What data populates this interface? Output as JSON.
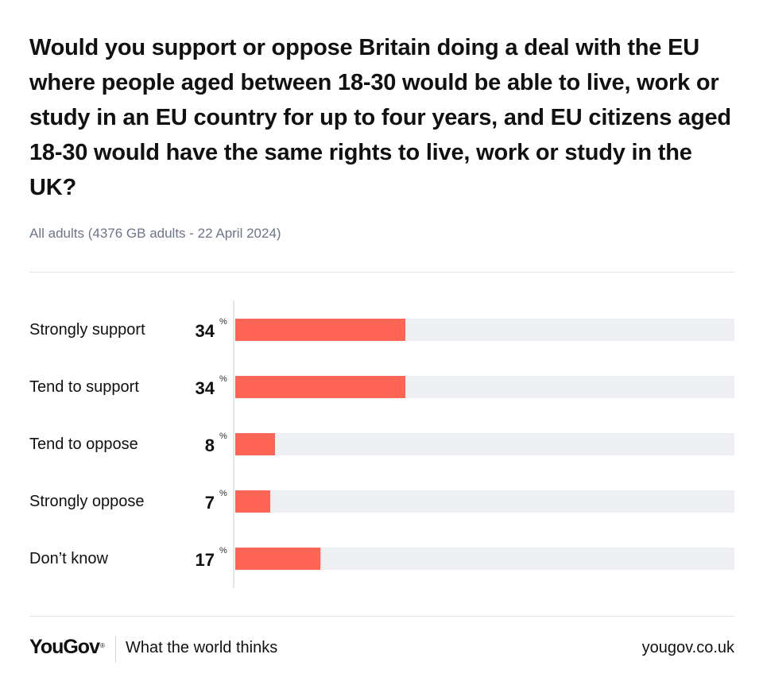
{
  "chart_data": {
    "type": "bar",
    "orientation": "horizontal",
    "title": "Would you support or oppose Britain doing a deal with the EU where people aged between 18-30 would be able to live, work or study in an EU country for up to four years, and EU citizens aged 18-30 would have the same rights to live, work or study in the UK?",
    "subtitle": "All adults (4376 GB adults - 22 April 2024)",
    "categories": [
      "Strongly support",
      "Tend to support",
      "Tend to oppose",
      "Strongly oppose",
      "Don’t know"
    ],
    "values": [
      34,
      34,
      8,
      7,
      17
    ],
    "unit": "%",
    "xlim": [
      0,
      100
    ],
    "grid": false,
    "legend": "none",
    "bar_color": "#ff6555",
    "track_color": "#eeeff3"
  },
  "footer": {
    "logo": "YouGov",
    "logo_mark": "®",
    "tagline": "What the world thinks",
    "url": "yougov.co.uk"
  }
}
